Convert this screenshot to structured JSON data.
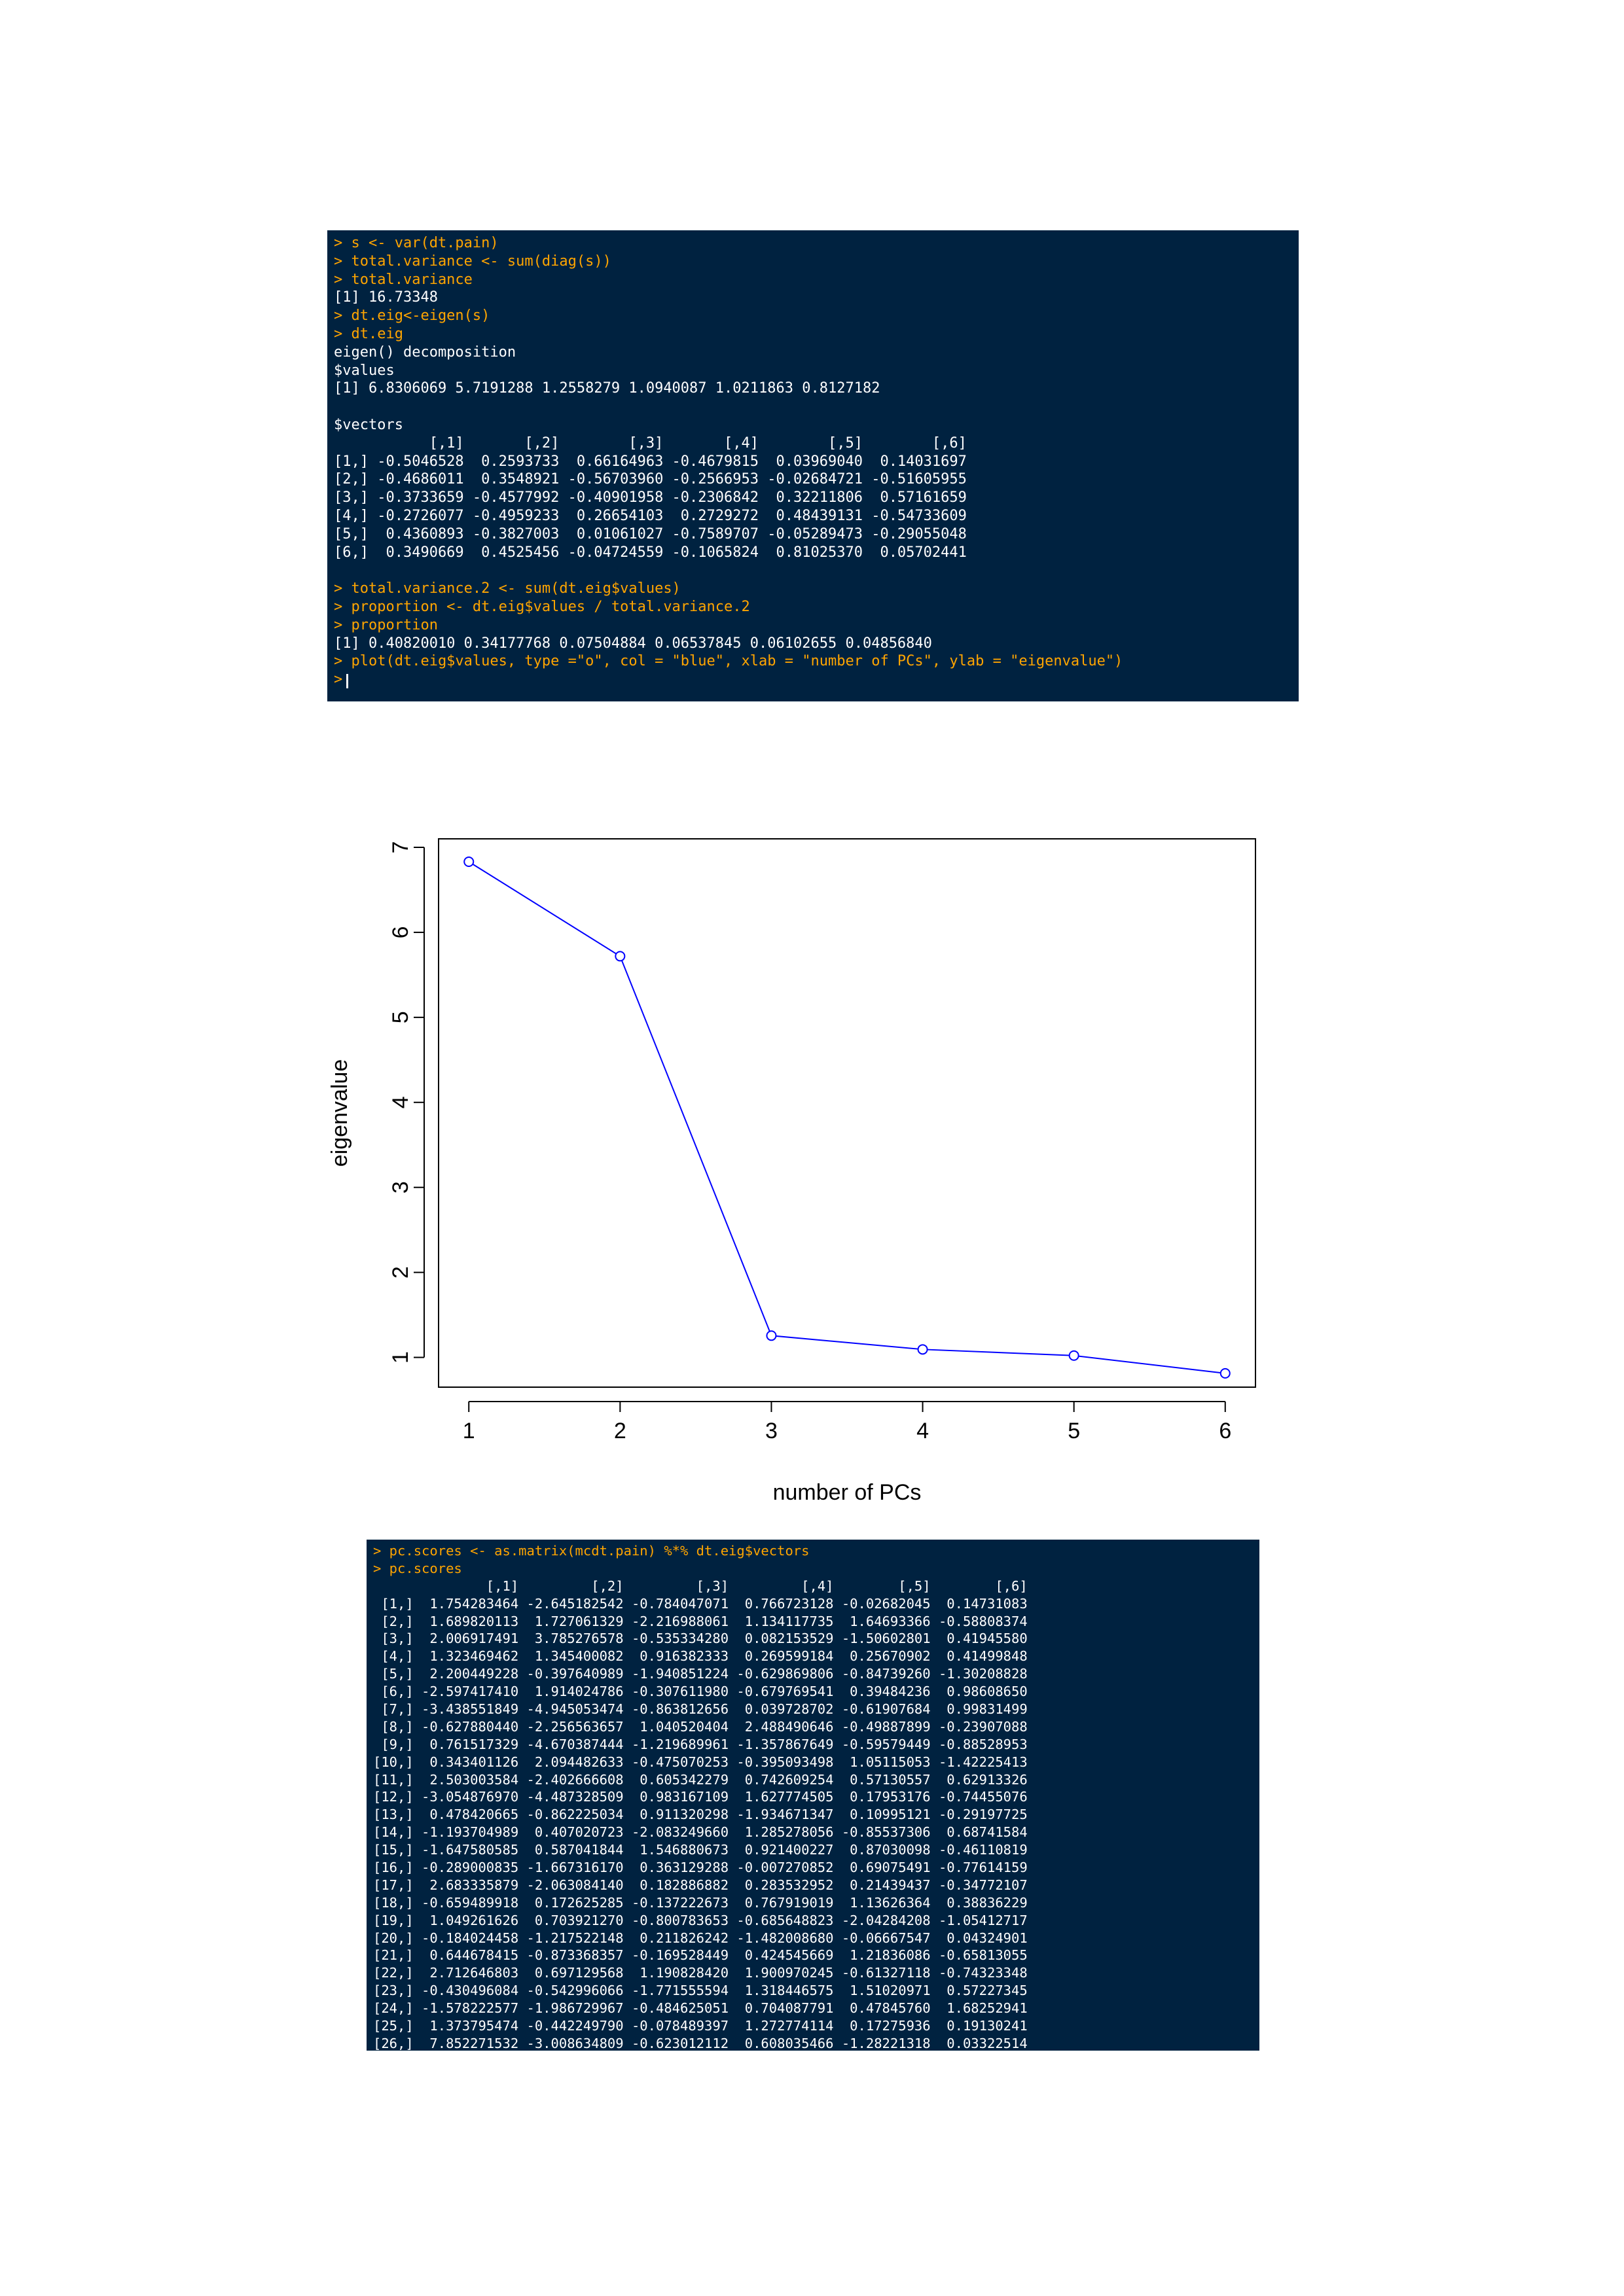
{
  "console_top": {
    "lines": [
      {
        "type": "cmd",
        "text": "> s <- var(dt.pain)"
      },
      {
        "type": "cmd",
        "text": "> total.variance <- sum(diag(s))"
      },
      {
        "type": "cmd",
        "text": "> total.variance"
      },
      {
        "type": "out",
        "text": "[1] 16.73348"
      },
      {
        "type": "cmd",
        "text": "> dt.eig<-eigen(s)"
      },
      {
        "type": "cmd",
        "text": "> dt.eig"
      },
      {
        "type": "out",
        "text": "eigen() decomposition"
      },
      {
        "type": "out",
        "text": "$values"
      },
      {
        "type": "out",
        "text": "[1] 6.8306069 5.7191288 1.2558279 1.0940087 1.0211863 0.8127182"
      },
      {
        "type": "gap",
        "text": ""
      },
      {
        "type": "out",
        "text": "$vectors"
      },
      {
        "type": "out",
        "text": "           [,1]       [,2]        [,3]       [,4]        [,5]        [,6]"
      },
      {
        "type": "out",
        "text": "[1,] -0.5046528  0.2593733  0.66164963 -0.4679815  0.03969040  0.14031697"
      },
      {
        "type": "out",
        "text": "[2,] -0.4686011  0.3548921 -0.56703960 -0.2566953 -0.02684721 -0.51605955"
      },
      {
        "type": "out",
        "text": "[3,] -0.3733659 -0.4577992 -0.40901958 -0.2306842  0.32211806  0.57161659"
      },
      {
        "type": "out",
        "text": "[4,] -0.2726077 -0.4959233  0.26654103  0.2729272  0.48439131 -0.54733609"
      },
      {
        "type": "out",
        "text": "[5,]  0.4360893 -0.3827003  0.01061027 -0.7589707 -0.05289473 -0.29055048"
      },
      {
        "type": "out",
        "text": "[6,]  0.3490669  0.4525456 -0.04724559 -0.1065824  0.81025370  0.05702441"
      },
      {
        "type": "gap",
        "text": ""
      },
      {
        "type": "cmd",
        "text": "> total.variance.2 <- sum(dt.eig$values)"
      },
      {
        "type": "cmd",
        "text": "> proportion <- dt.eig$values / total.variance.2"
      },
      {
        "type": "cmd",
        "text": "> proportion"
      },
      {
        "type": "out",
        "text": "[1] 0.40820010 0.34177768 0.07504884 0.06537845 0.06102655 0.04856840"
      },
      {
        "type": "cmd",
        "text": "> plot(dt.eig$values, type =\"o\", col = \"blue\", xlab = \"number of PCs\", ylab = \"eigenvalue\")"
      },
      {
        "type": "prompt",
        "text": ">"
      }
    ]
  },
  "chart_data": {
    "type": "line",
    "x": [
      1,
      2,
      3,
      4,
      5,
      6
    ],
    "y": [
      6.8306069,
      5.7191288,
      1.2558279,
      1.0940087,
      1.0211863,
      0.8127182
    ],
    "xlabel": "number of PCs",
    "ylabel": "eigenvalue",
    "xticks": [
      "1",
      "2",
      "3",
      "4",
      "5",
      "6"
    ],
    "yticks": [
      "1",
      "2",
      "3",
      "4",
      "5",
      "6",
      "7"
    ],
    "xlim": [
      0.8,
      6.2
    ],
    "ylim": [
      0.65,
      7.1
    ],
    "line_color": "#0000ff",
    "marker": "open-circle",
    "grid": false
  },
  "console_bottom": {
    "lines": [
      {
        "type": "cmd",
        "text": "> pc.scores <- as.matrix(mcdt.pain) %*% dt.eig$vectors"
      },
      {
        "type": "cmd",
        "text": "> pc.scores"
      },
      {
        "type": "out",
        "text": "              [,1]         [,2]         [,3]         [,4]        [,5]        [,6]"
      },
      {
        "type": "out",
        "text": " [1,]  1.754283464 -2.645182542 -0.784047071  0.766723128 -0.02682045  0.14731083"
      },
      {
        "type": "out",
        "text": " [2,]  1.689820113  1.727061329 -2.216988061  1.134117735  1.64693366 -0.58808374"
      },
      {
        "type": "out",
        "text": " [3,]  2.006917491  3.785276578 -0.535334280  0.082153529 -1.50602801  0.41945580"
      },
      {
        "type": "out",
        "text": " [4,]  1.323469462  1.345400082  0.916382333  0.269599184  0.25670902  0.41499848"
      },
      {
        "type": "out",
        "text": " [5,]  2.200449228 -0.397640989 -1.940851224 -0.629869806 -0.84739260 -1.30208828"
      },
      {
        "type": "out",
        "text": " [6,] -2.597417410  1.914024786 -0.307611980 -0.679769541  0.39484236  0.98608650"
      },
      {
        "type": "out",
        "text": " [7,] -3.438551849 -4.945053474 -0.863812656  0.039728702 -0.61907684  0.99831499"
      },
      {
        "type": "out",
        "text": " [8,] -0.627880440 -2.256563657  1.040520404  2.488490646 -0.49887899 -0.23907088"
      },
      {
        "type": "out",
        "text": " [9,]  0.761517329 -4.670387444 -1.219689961 -1.357867649 -0.59579449 -0.88528953"
      },
      {
        "type": "out",
        "text": "[10,]  0.343401126  2.094482633 -0.475070253 -0.395093498  1.05115053 -1.42225413"
      },
      {
        "type": "out",
        "text": "[11,]  2.503003584 -2.402666608  0.605342279  0.742609254  0.57130557  0.62913326"
      },
      {
        "type": "out",
        "text": "[12,] -3.054876970 -4.487328509  0.983167109  1.627774505  0.17953176 -0.74455076"
      },
      {
        "type": "out",
        "text": "[13,]  0.478420665 -0.862225034  0.911320298 -1.934671347  0.10995121 -0.29197725"
      },
      {
        "type": "out",
        "text": "[14,] -1.193704989  0.407020723 -2.083249660  1.285278056 -0.85537306  0.68741584"
      },
      {
        "type": "out",
        "text": "[15,] -1.647580585  0.587041844  1.546880673  0.921400227  0.87030098 -0.46110819"
      },
      {
        "type": "out",
        "text": "[16,] -0.289000835 -1.667316170  0.363129288 -0.007270852  0.69075491 -0.77614159"
      },
      {
        "type": "out",
        "text": "[17,]  2.683335879 -2.063084140  0.182886882  0.283532952  0.21439437 -0.34772107"
      },
      {
        "type": "out",
        "text": "[18,] -0.659489918  0.172625285 -0.137222673  0.767919019  1.13626364  0.38836229"
      },
      {
        "type": "out",
        "text": "[19,]  1.049261626  0.703921270 -0.800783653 -0.685648823 -2.04284208 -1.05412717"
      },
      {
        "type": "out",
        "text": "[20,] -0.184024458 -1.217522148  0.211826242 -1.482008680 -0.06667547  0.04324901"
      },
      {
        "type": "out",
        "text": "[21,]  0.644678415 -0.873368357 -0.169528449  0.424545669  1.21836086 -0.65813055"
      },
      {
        "type": "out",
        "text": "[22,]  2.712646803  0.697129568  1.190828420  1.900970245 -0.61327118 -0.74323348"
      },
      {
        "type": "out",
        "text": "[23,] -0.430496084 -0.542996066 -1.771555594  1.318446575  1.51020971  0.57227345"
      },
      {
        "type": "out",
        "text": "[24,] -1.578222577 -1.986729967 -0.484625051  0.704087791  0.47845760  1.68252941"
      },
      {
        "type": "out",
        "text": "[25,]  1.373795474 -0.442249790 -0.078489397  1.272774114  0.17275936  0.19130241"
      },
      {
        "type": "out",
        "text": "[26,]  7.852271532 -3.008634809 -0.623012112  0.608035466 -1.28221318  0.03322514"
      }
    ]
  }
}
